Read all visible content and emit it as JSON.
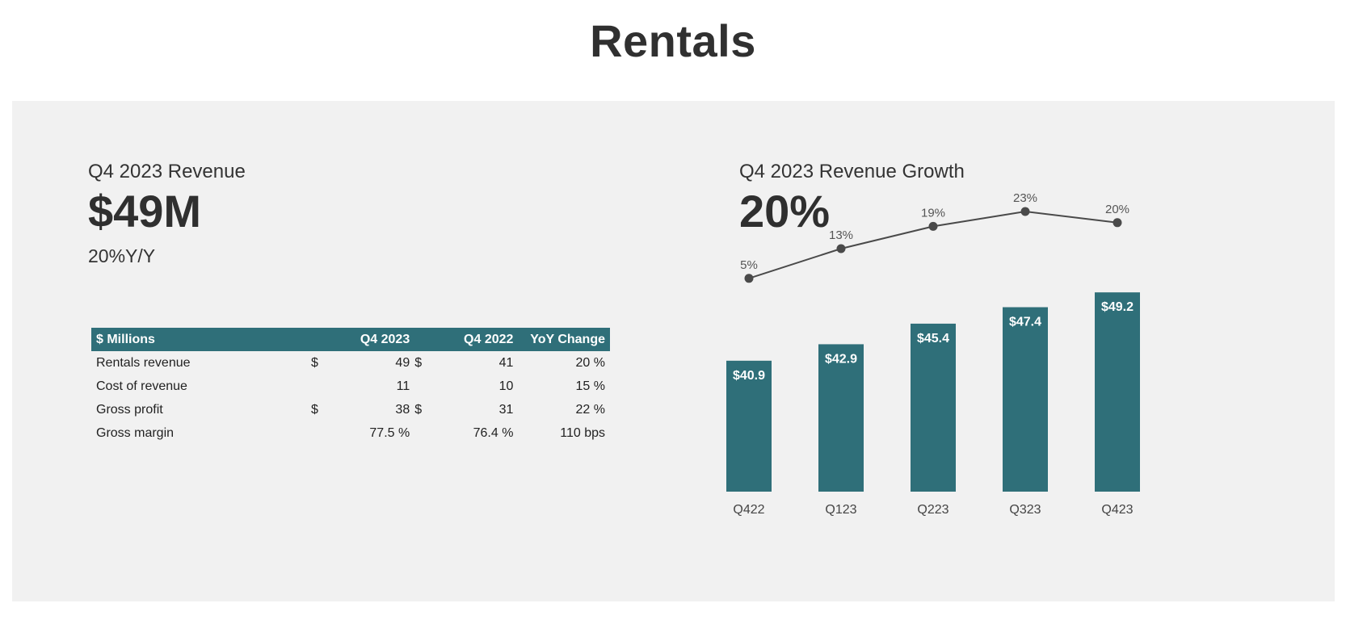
{
  "page": {
    "title": "Rentals"
  },
  "left": {
    "metric_label": "Q4 2023 Revenue",
    "metric_value": "$49M",
    "metric_sub": "20%Y/Y"
  },
  "table": {
    "headers": [
      "$ Millions",
      "Q4 2023",
      "Q4 2022",
      "YoY Change"
    ],
    "rows": [
      {
        "label": "Rentals revenue",
        "cur1": "$",
        "q4_2023": "49",
        "cur2": "$",
        "q4_2022": "41",
        "yoy": "20 %"
      },
      {
        "label": "Cost of revenue",
        "cur1": "",
        "q4_2023": "11",
        "cur2": "",
        "q4_2022": "10",
        "yoy": "15 %"
      },
      {
        "label": "Gross profit",
        "cur1": "$",
        "q4_2023": "38",
        "cur2": "$",
        "q4_2022": "31",
        "yoy": "22 %"
      },
      {
        "label": "Gross margin",
        "cur1": "",
        "q4_2023": "77.5 %",
        "cur2": "",
        "q4_2022": "76.4 %",
        "yoy": "110 bps"
      }
    ]
  },
  "right": {
    "metric_label": "Q4 2023 Revenue Growth",
    "metric_value": "20%"
  },
  "colors": {
    "bar": "#2f6f79",
    "line": "#4a4a4a",
    "panel": "#f1f1f1"
  },
  "chart_data": {
    "type": "bar",
    "title": "",
    "categories": [
      "Q422",
      "Q123",
      "Q223",
      "Q323",
      "Q423"
    ],
    "series": [
      {
        "type": "bar",
        "values": [
          40.9,
          42.9,
          45.4,
          47.4,
          49.2
        ],
        "labels": [
          "$40.9",
          "$42.9",
          "$45.4",
          "$47.4",
          "$49.2"
        ]
      },
      {
        "type": "line",
        "values": [
          5,
          13,
          19,
          23,
          20
        ],
        "labels": [
          "5%",
          "13%",
          "19%",
          "23%",
          "20%"
        ]
      }
    ],
    "xlabel": "",
    "ylabel": "",
    "grid": false,
    "legend": "none"
  }
}
